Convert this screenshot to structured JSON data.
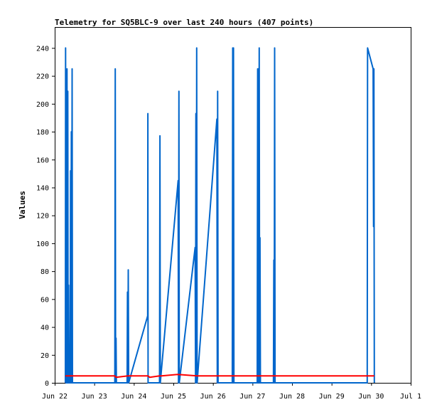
{
  "chart_data": {
    "type": "line",
    "title": "Telemetry for SQ5BLC-9 over last 240 hours (407 points)",
    "xlabel": "",
    "ylabel": "Values",
    "ylim": [
      0,
      255
    ],
    "y_ticks": [
      0,
      20,
      40,
      60,
      80,
      100,
      120,
      140,
      160,
      180,
      200,
      220,
      240
    ],
    "x_ticks": [
      "Jun 22",
      "Jun 23",
      "Jun 24",
      "Jun 25",
      "Jun 26",
      "Jun 27",
      "Jun 28",
      "Jun 29",
      "Jun 30",
      "Jul 1"
    ],
    "xlim": [
      0,
      9
    ],
    "grid": false,
    "colors": {
      "series_blue": "#0066cc",
      "series_red": "#ff0000",
      "axis": "#000000"
    },
    "series": [
      {
        "color": "#0066cc",
        "points": [
          [
            0.27,
            0
          ],
          [
            0.275,
            240
          ],
          [
            0.285,
            0
          ],
          [
            0.295,
            192
          ],
          [
            0.305,
            0
          ],
          [
            0.31,
            225
          ],
          [
            0.32,
            0
          ],
          [
            0.33,
            209
          ],
          [
            0.34,
            0
          ],
          [
            0.35,
            70
          ],
          [
            0.36,
            0
          ],
          [
            0.39,
            0
          ],
          [
            0.4,
            152
          ],
          [
            0.41,
            0
          ],
          [
            0.42,
            180
          ],
          [
            0.43,
            0
          ],
          [
            0.44,
            225
          ],
          [
            0.45,
            0
          ],
          [
            1.52,
            0
          ],
          [
            1.53,
            225
          ],
          [
            1.54,
            0
          ],
          [
            1.55,
            32
          ],
          [
            1.56,
            0
          ],
          [
            1.83,
            0
          ],
          [
            1.84,
            65
          ],
          [
            1.85,
            0
          ],
          [
            1.86,
            81
          ],
          [
            1.87,
            0
          ],
          [
            2.35,
            48
          ],
          [
            2.355,
            193
          ],
          [
            2.36,
            0
          ],
          [
            2.65,
            0
          ],
          [
            2.66,
            177
          ],
          [
            2.67,
            0
          ],
          [
            3.12,
            145
          ],
          [
            3.13,
            0
          ],
          [
            3.14,
            209
          ],
          [
            3.15,
            0
          ],
          [
            3.55,
            97
          ],
          [
            3.56,
            0
          ],
          [
            3.57,
            193
          ],
          [
            3.58,
            0
          ],
          [
            3.59,
            240
          ],
          [
            3.6,
            0
          ],
          [
            4.1,
            189
          ],
          [
            4.11,
            0
          ],
          [
            4.12,
            209
          ],
          [
            4.13,
            0
          ],
          [
            4.49,
            0
          ],
          [
            4.5,
            240
          ],
          [
            4.51,
            0
          ],
          [
            4.52,
            240
          ],
          [
            4.53,
            0
          ],
          [
            5.12,
            0
          ],
          [
            5.13,
            225
          ],
          [
            5.14,
            0
          ],
          [
            5.15,
            225
          ],
          [
            5.16,
            0
          ],
          [
            5.17,
            240
          ],
          [
            5.18,
            0
          ],
          [
            5.19,
            104
          ],
          [
            5.2,
            0
          ],
          [
            5.53,
            0
          ],
          [
            5.54,
            88
          ],
          [
            5.55,
            0
          ],
          [
            5.56,
            240
          ],
          [
            5.57,
            0
          ],
          [
            7.9,
            0
          ],
          [
            7.91,
            240
          ],
          [
            8.05,
            225
          ],
          [
            8.06,
            112
          ],
          [
            8.07,
            225
          ],
          [
            8.08,
            0
          ]
        ]
      },
      {
        "color": "#ff0000",
        "points": [
          [
            0.27,
            5
          ],
          [
            1.52,
            5
          ],
          [
            1.55,
            4
          ],
          [
            1.85,
            5
          ],
          [
            2.36,
            5
          ],
          [
            2.4,
            4
          ],
          [
            2.65,
            5
          ],
          [
            2.7,
            5
          ],
          [
            3.1,
            6
          ],
          [
            3.6,
            5
          ],
          [
            5.5,
            5
          ],
          [
            7.9,
            5
          ],
          [
            8.08,
            5
          ]
        ]
      }
    ]
  }
}
